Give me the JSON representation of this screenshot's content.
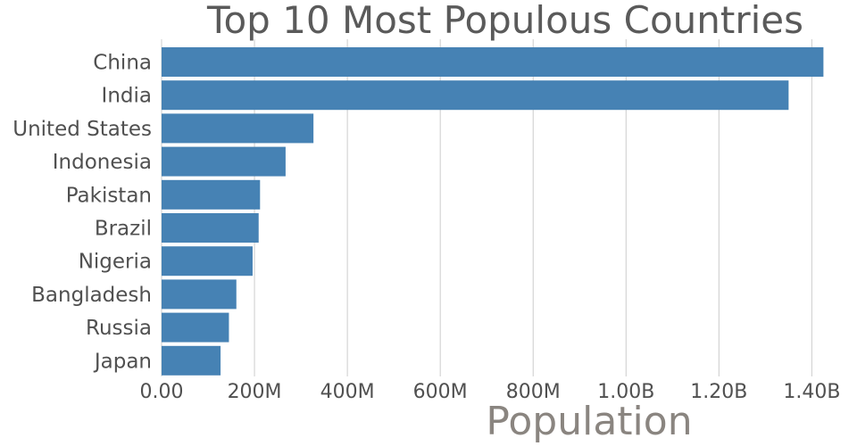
{
  "chart_data": {
    "type": "bar",
    "orientation": "horizontal",
    "title": "Top 10 Most Populous Countries",
    "xlabel": "Population",
    "ylabel": "",
    "categories": [
      "China",
      "India",
      "United States",
      "Indonesia",
      "Pakistan",
      "Brazil",
      "Nigeria",
      "Bangladesh",
      "Russia",
      "Japan"
    ],
    "values": [
      1425000000,
      1350000000,
      327000000,
      267000000,
      212000000,
      209000000,
      196000000,
      161000000,
      145000000,
      127000000
    ],
    "xlim": [
      0,
      1430000000
    ],
    "xticks": [
      0,
      200000000,
      400000000,
      600000000,
      800000000,
      1000000000,
      1200000000,
      1400000000
    ],
    "xtick_labels": [
      "0.00",
      "200M",
      "400M",
      "600M",
      "800M",
      "1.00B",
      "1.20B",
      "1.40B"
    ],
    "grid": "vertical",
    "legend": "none",
    "bar_color": "#4682b4"
  }
}
